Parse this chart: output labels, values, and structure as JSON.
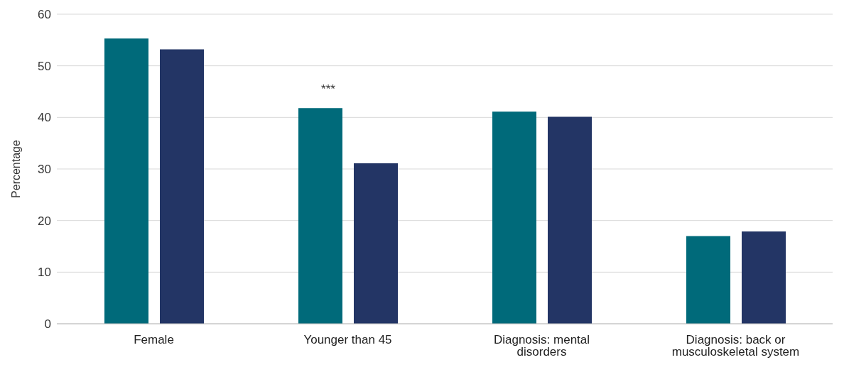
{
  "chart_data": {
    "type": "bar",
    "ylabel": "Percentage",
    "categories": [
      "Female",
      "Younger than 45",
      "Diagnosis: mental disorders",
      "Diagnosis: back or musculoskeletal system"
    ],
    "series": [
      {
        "color": "#006a7a",
        "values": [
          55.3,
          41.8,
          41.1,
          17.0
        ]
      },
      {
        "color": "#233565",
        "values": [
          53.2,
          31.1,
          40.1,
          17.9
        ]
      }
    ],
    "ylim": [
      0,
      60
    ],
    "yticks": [
      0,
      10,
      20,
      30,
      40,
      50,
      60
    ],
    "grid": "y",
    "legend": false,
    "annotations": [
      "***"
    ]
  }
}
